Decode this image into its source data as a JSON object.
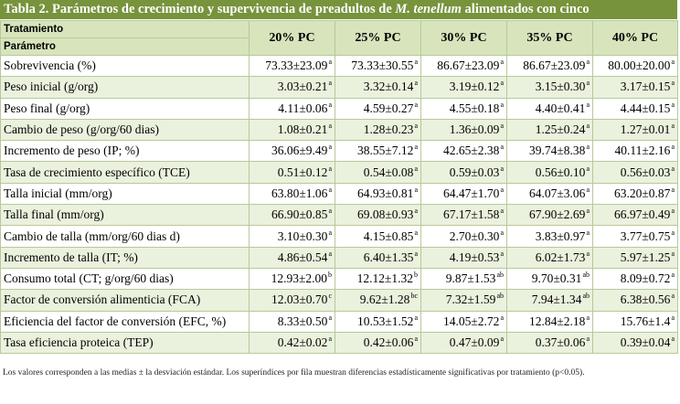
{
  "caption": {
    "prefix": "Tabla 2. Parámetros de crecimiento y supervivencia de preadultos de ",
    "species": "M. tenellum",
    "suffix": " alimentados con cinco"
  },
  "table": {
    "header_treatment": "Tratamiento",
    "header_parameter": "Parámetro",
    "columns": [
      "20% PC",
      "25% PC",
      "30% PC",
      "35% PC",
      "40% PC"
    ],
    "rows": [
      {
        "label": "Sobrevivencia (%)",
        "cells": [
          {
            "v": "73.33±23.09",
            "s": "a"
          },
          {
            "v": "73.33±30.55",
            "s": "a"
          },
          {
            "v": "86.67±23.09",
            "s": "a"
          },
          {
            "v": "86.67±23.09",
            "s": "a"
          },
          {
            "v": "80.00±20.00",
            "s": "a"
          }
        ]
      },
      {
        "label": "Peso inicial (g/org)",
        "cells": [
          {
            "v": "3.03±0.21",
            "s": "a"
          },
          {
            "v": "3.32±0.14",
            "s": "a"
          },
          {
            "v": "3.19±0.12",
            "s": "a"
          },
          {
            "v": "3.15±0.30",
            "s": "a"
          },
          {
            "v": "3.17±0.15",
            "s": "a"
          }
        ]
      },
      {
        "label": "Peso final (g/org)",
        "cells": [
          {
            "v": "4.11±0.06",
            "s": "a"
          },
          {
            "v": "4.59±0.27",
            "s": "a"
          },
          {
            "v": "4.55±0.18",
            "s": "a"
          },
          {
            "v": "4.40±0.41",
            "s": "a"
          },
          {
            "v": "4.44±0.15",
            "s": "a"
          }
        ]
      },
      {
        "label": "Cambio de peso (g/org/60 dias)",
        "cells": [
          {
            "v": "1.08±0.21",
            "s": "a"
          },
          {
            "v": "1.28±0.23",
            "s": "a"
          },
          {
            "v": "1.36±0.09",
            "s": "a"
          },
          {
            "v": "1.25±0.24",
            "s": "a"
          },
          {
            "v": "1.27±0.01",
            "s": "a"
          }
        ]
      },
      {
        "label": "Incremento de peso (IP; %)",
        "cells": [
          {
            "v": "36.06±9.49",
            "s": "a"
          },
          {
            "v": "38.55±7.12",
            "s": "a"
          },
          {
            "v": "42.65±2.38",
            "s": "a"
          },
          {
            "v": "39.74±8.38",
            "s": "a"
          },
          {
            "v": "40.11±2.16",
            "s": "a"
          }
        ]
      },
      {
        "label": "Tasa de crecimiento específico (TCE)",
        "cells": [
          {
            "v": "0.51±0.12",
            "s": "a"
          },
          {
            "v": "0.54±0.08",
            "s": "a"
          },
          {
            "v": "0.59±0.03",
            "s": "a"
          },
          {
            "v": "0.56±0.10",
            "s": "a"
          },
          {
            "v": "0.56±0.03",
            "s": "a"
          }
        ]
      },
      {
        "label": "Talla inicial (mm/org)",
        "cells": [
          {
            "v": "63.80±1.06",
            "s": "a"
          },
          {
            "v": "64.93±0.81",
            "s": "a"
          },
          {
            "v": "64.47±1.70",
            "s": "a"
          },
          {
            "v": "64.07±3.06",
            "s": "a"
          },
          {
            "v": "63.20±0.87",
            "s": "a"
          }
        ]
      },
      {
        "label": "Talla final (mm/org)",
        "cells": [
          {
            "v": "66.90±0.85",
            "s": "a"
          },
          {
            "v": "69.08±0.93",
            "s": "a"
          },
          {
            "v": "67.17±1.58",
            "s": "a"
          },
          {
            "v": "67.90±2.69",
            "s": "a"
          },
          {
            "v": "66.97±0.49",
            "s": "a"
          }
        ]
      },
      {
        "label": "Cambio de talla (mm/org/60 dias d)",
        "cells": [
          {
            "v": "3.10±0.30",
            "s": "a"
          },
          {
            "v": "4.15±0.85",
            "s": "a"
          },
          {
            "v": "2.70±0.30",
            "s": "a"
          },
          {
            "v": "3.83±0.97",
            "s": "a"
          },
          {
            "v": "3.77±0.75",
            "s": "a"
          }
        ]
      },
      {
        "label": "Incremento de talla (IT; %)",
        "cells": [
          {
            "v": "4.86±0.54",
            "s": "a"
          },
          {
            "v": "6.40±1.35",
            "s": "a"
          },
          {
            "v": "4.19±0.53",
            "s": "a"
          },
          {
            "v": "6.02±1.73",
            "s": "a"
          },
          {
            "v": "5.97±1.25",
            "s": "a"
          }
        ]
      },
      {
        "label": "Consumo total (CT; g/org/60 dias)",
        "cells": [
          {
            "v": "12.93±2.00",
            "s": "b"
          },
          {
            "v": "12.12±1.32",
            "s": "b"
          },
          {
            "v": "9.87±1.53",
            "s": "ab"
          },
          {
            "v": "9.70±0.31",
            "s": "ab"
          },
          {
            "v": "8.09±0.72",
            "s": "a"
          }
        ]
      },
      {
        "label": "Factor de conversión alimenticia (FCA)",
        "cells": [
          {
            "v": "12.03±0.70",
            "s": "c"
          },
          {
            "v": "9.62±1.28",
            "s": "bc"
          },
          {
            "v": "7.32±1.59",
            "s": "ab"
          },
          {
            "v": "7.94±1.34",
            "s": "ab"
          },
          {
            "v": "6.38±0.56",
            "s": "a"
          }
        ]
      },
      {
        "label": "Eficiencia del factor de conversión (EFC, %)",
        "cells": [
          {
            "v": "8.33±0.50",
            "s": "a"
          },
          {
            "v": "10.53±1.52",
            "s": "a"
          },
          {
            "v": "14.05±2.72",
            "s": "a"
          },
          {
            "v": "12.84±2.18",
            "s": "a"
          },
          {
            "v": "15.76±1.4",
            "s": "a"
          }
        ]
      },
      {
        "label": "Tasa eficiencia proteica (TEP)",
        "cells": [
          {
            "v": "0.42±0.02",
            "s": "a"
          },
          {
            "v": "0.42±0.06",
            "s": "a"
          },
          {
            "v": "0.47±0.09",
            "s": "a"
          },
          {
            "v": "0.37±0.06",
            "s": "a"
          },
          {
            "v": "0.39±0.04",
            "s": "a"
          }
        ]
      }
    ]
  },
  "note": "Los valores corresponden a las medias ± la desviación estándar. Los superíndices por fila muestran diferencias estadísticamente significativas por tratamiento (p<0.05).",
  "colors": {
    "caption_bg": "#77933c",
    "header_bg": "#d7e4bc",
    "stripe_bg": "#eaf1dd",
    "border": "#b7c99a"
  }
}
